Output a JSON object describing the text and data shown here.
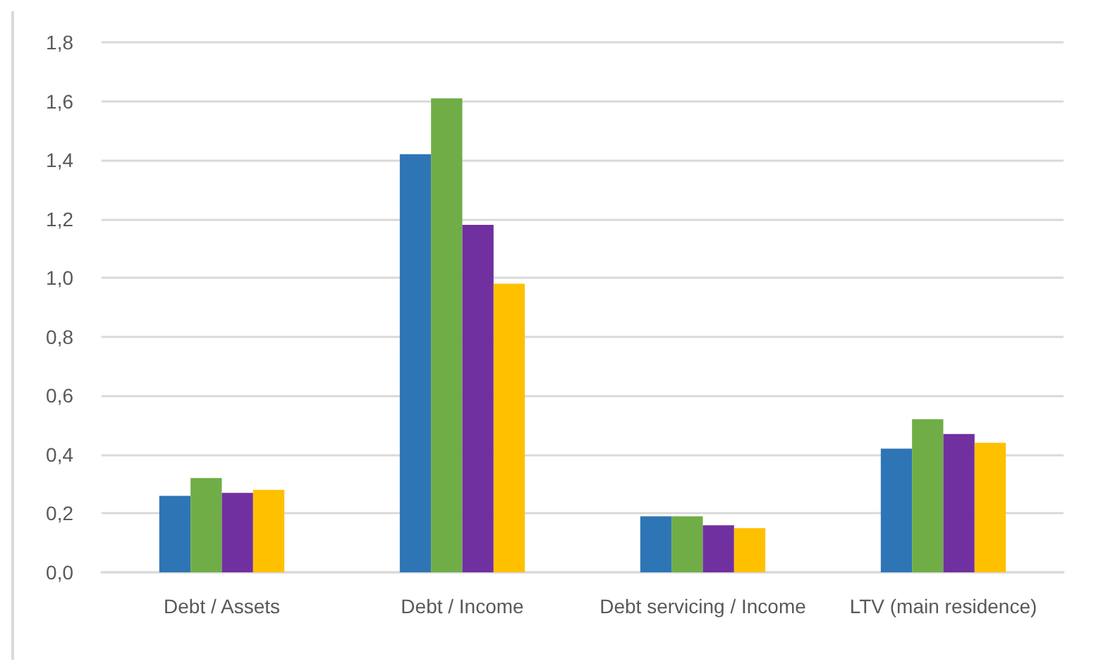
{
  "chart_data": {
    "type": "bar",
    "categories": [
      "Debt / Assets",
      "Debt / Income",
      "Debt servicing / Income",
      "LTV (main residence)"
    ],
    "series": [
      {
        "color": "#2e75b6",
        "values": [
          0.26,
          1.42,
          0.19,
          0.42
        ]
      },
      {
        "color": "#70ad47",
        "values": [
          0.32,
          1.61,
          0.19,
          0.52
        ]
      },
      {
        "color": "#7030a0",
        "values": [
          0.27,
          1.18,
          0.16,
          0.47
        ]
      },
      {
        "color": "#ffc000",
        "values": [
          0.28,
          0.98,
          0.15,
          0.44
        ]
      }
    ],
    "ylim": [
      0,
      1.8
    ],
    "yticks": [
      {
        "value": 0,
        "label": "0,0"
      },
      {
        "value": 0.2,
        "label": "0,2"
      },
      {
        "value": 0.4,
        "label": "0,4"
      },
      {
        "value": 0.6,
        "label": "0,6"
      },
      {
        "value": 0.8,
        "label": "0,8"
      },
      {
        "value": 1,
        "label": "1,0"
      },
      {
        "value": 1.2,
        "label": "1,2"
      },
      {
        "value": 1.4,
        "label": "1,4"
      },
      {
        "value": 1.6,
        "label": "1,6"
      },
      {
        "value": 1.8,
        "label": "1,8"
      }
    ],
    "grid": "y"
  }
}
